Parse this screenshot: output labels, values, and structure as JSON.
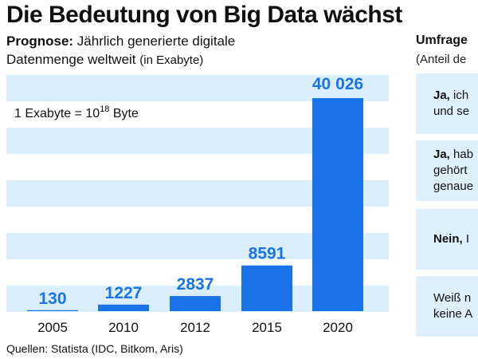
{
  "title": "Die Bedeutung von Big Data wächst",
  "forecast": {
    "label": "Prognose:",
    "text_line1": "Jährlich generierte digitale",
    "text_line2": "Datenmenge weltweit",
    "unit": "(in Exabyte)"
  },
  "note": {
    "prefix": "1 Exabyte = 10",
    "exponent": "18",
    "suffix": " Byte"
  },
  "survey": {
    "title": "Umfrage",
    "subtitle": "(Anteil de",
    "boxes": [
      {
        "bold": "Ja,",
        "line1": " ich",
        "line2": "und se"
      },
      {
        "bold": "Ja,",
        "line1": " hab",
        "line2": "gehört",
        "line3": "genaue"
      },
      {
        "bold": "Nein,",
        "line1": " I"
      },
      {
        "bold": "",
        "line1": "Weiß n",
        "line2": "keine A"
      }
    ]
  },
  "source": "Quellen: Statista (IDC, Bitkom, Aris)",
  "colors": {
    "bar": "#1a73e8",
    "value_label": "#1a73e8",
    "band": "#dbeefc",
    "survey_box": "#dff0fd"
  },
  "chart_data": {
    "type": "bar",
    "categories": [
      "2005",
      "2010",
      "2012",
      "2015",
      "2020"
    ],
    "values": [
      130,
      1227,
      2837,
      8591,
      40026
    ],
    "value_labels": [
      "130",
      "1227",
      "2837",
      "8591",
      "40 026"
    ],
    "title": "",
    "xlabel": "",
    "ylabel": "",
    "ylim": [
      0,
      40026
    ],
    "grid": "horizontal bands",
    "legend": "none"
  }
}
